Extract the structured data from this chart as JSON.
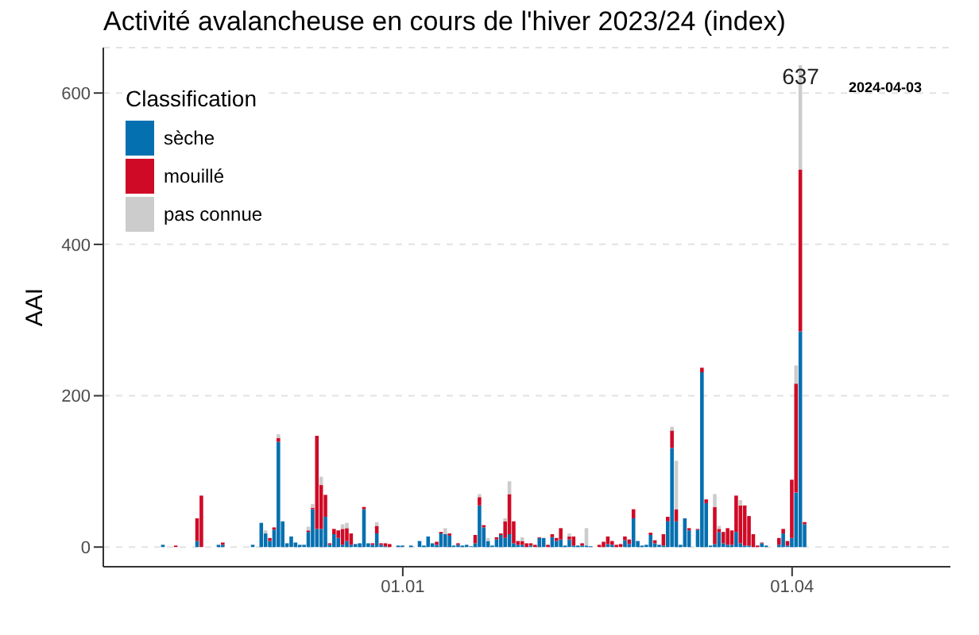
{
  "chart_data": {
    "type": "bar",
    "title": "Activité avalancheuse en cours de l'hiver 2023/24 (index)",
    "ylabel": "AAI",
    "legend_title": "Classification",
    "legend": "top left",
    "grid": "y",
    "stacked": true,
    "xlim": [
      "2023-10-23",
      "2024-05-08"
    ],
    "xticks": [
      {
        "value": "2024-01-01",
        "label": "01.01"
      },
      {
        "value": "2024-04-01",
        "label": "01.04"
      }
    ],
    "ylim": [
      -26,
      660
    ],
    "yticks": [
      0,
      200,
      400,
      600
    ],
    "annotations": [
      {
        "text": "637",
        "x": "2024-04-03",
        "y": 637
      },
      "2024-04-03"
    ],
    "x": [
      "2023-11-06",
      "2023-11-09",
      "2023-11-14",
      "2023-11-15",
      "2023-11-19",
      "2023-11-20",
      "2023-11-27",
      "2023-11-29",
      "2023-11-30",
      "2023-12-01",
      "2023-12-02",
      "2023-12-03",
      "2023-12-04",
      "2023-12-05",
      "2023-12-06",
      "2023-12-07",
      "2023-12-08",
      "2023-12-09",
      "2023-12-10",
      "2023-12-11",
      "2023-12-12",
      "2023-12-13",
      "2023-12-14",
      "2023-12-15",
      "2023-12-16",
      "2023-12-17",
      "2023-12-18",
      "2023-12-19",
      "2023-12-20",
      "2023-12-21",
      "2023-12-22",
      "2023-12-23",
      "2023-12-24",
      "2023-12-25",
      "2023-12-26",
      "2023-12-27",
      "2023-12-28",
      "2023-12-29",
      "2023-12-31",
      "2024-01-01",
      "2024-01-03",
      "2024-01-05",
      "2024-01-06",
      "2024-01-07",
      "2024-01-08",
      "2024-01-09",
      "2024-01-10",
      "2024-01-11",
      "2024-01-12",
      "2024-01-13",
      "2024-01-14",
      "2024-01-15",
      "2024-01-16",
      "2024-01-17",
      "2024-01-18",
      "2024-01-19",
      "2024-01-20",
      "2024-01-21",
      "2024-01-22",
      "2024-01-23",
      "2024-01-24",
      "2024-01-25",
      "2024-01-26",
      "2024-01-27",
      "2024-01-28",
      "2024-01-29",
      "2024-01-30",
      "2024-01-31",
      "2024-02-01",
      "2024-02-02",
      "2024-02-03",
      "2024-02-04",
      "2024-02-05",
      "2024-02-06",
      "2024-02-07",
      "2024-02-08",
      "2024-02-09",
      "2024-02-10",
      "2024-02-11",
      "2024-02-12",
      "2024-02-13",
      "2024-02-14",
      "2024-02-16",
      "2024-02-17",
      "2024-02-18",
      "2024-02-19",
      "2024-02-20",
      "2024-02-21",
      "2024-02-22",
      "2024-02-23",
      "2024-02-24",
      "2024-02-25",
      "2024-02-26",
      "2024-02-27",
      "2024-02-28",
      "2024-02-29",
      "2024-03-01",
      "2024-03-02",
      "2024-03-03",
      "2024-03-04",
      "2024-03-05",
      "2024-03-06",
      "2024-03-07",
      "2024-03-08",
      "2024-03-10",
      "2024-03-11",
      "2024-03-12",
      "2024-03-13",
      "2024-03-14",
      "2024-03-15",
      "2024-03-16",
      "2024-03-17",
      "2024-03-18",
      "2024-03-19",
      "2024-03-20",
      "2024-03-21",
      "2024-03-22",
      "2024-03-23",
      "2024-03-24",
      "2024-03-25",
      "2024-03-26",
      "2024-03-29",
      "2024-03-30",
      "2024-03-31",
      "2024-04-01",
      "2024-04-02",
      "2024-04-03",
      "2024-04-04"
    ],
    "series": [
      {
        "name": "sèche",
        "color": "#0570b0",
        "values": [
          3,
          null,
          8,
          null,
          3,
          3,
          3,
          32,
          18,
          8,
          23,
          139,
          34,
          5,
          14,
          6,
          3,
          3,
          20,
          50,
          24,
          24,
          40,
          3,
          17,
          12,
          3,
          8,
          3,
          4,
          5,
          50,
          5,
          3,
          18,
          3,
          1,
          null,
          2,
          2,
          2,
          8,
          2,
          14,
          5,
          3,
          18,
          17,
          15,
          2,
          3,
          2,
          3,
          1,
          5,
          55,
          26,
          8,
          2,
          10,
          16,
          12,
          17,
          5,
          3,
          3,
          null,
          2,
          null,
          12,
          12,
          null,
          13,
          8,
          10,
          2,
          10,
          2,
          2,
          2,
          2,
          1,
          null,
          null,
          4,
          3,
          null,
          null,
          9,
          4,
          38,
          8,
          2,
          3,
          16,
          5,
          3,
          2,
          34,
          131,
          34,
          3,
          38,
          22,
          23,
          231,
          58,
          2,
          4,
          20,
          5,
          3,
          3,
          20,
          5,
          2,
          2,
          null,
          null,
          5,
          2,
          3,
          18,
          2,
          12,
          72,
          285,
          30
        ]
      },
      {
        "name": "mouillé",
        "color": "#cf0a26",
        "values": [
          null,
          2,
          30,
          68,
          null,
          3,
          null,
          null,
          null,
          4,
          3,
          5,
          null,
          null,
          null,
          null,
          null,
          null,
          2,
          2,
          123,
          58,
          29,
          2,
          7,
          10,
          21,
          17,
          15,
          null,
          null,
          3,
          null,
          2,
          10,
          2,
          4,
          4,
          null,
          null,
          null,
          null,
          null,
          null,
          null,
          4,
          2,
          null,
          3,
          null,
          2,
          null,
          null,
          null,
          11,
          11,
          3,
          null,
          null,
          3,
          2,
          22,
          53,
          29,
          5,
          5,
          5,
          3,
          3,
          1,
          null,
          3,
          4,
          4,
          15,
          null,
          4,
          12,
          null,
          3,
          null,
          null,
          3,
          7,
          10,
          5,
          3,
          4,
          5,
          6,
          12,
          null,
          null,
          null,
          3,
          4,
          null,
          15,
          6,
          23,
          16,
          null,
          null,
          3,
          1,
          6,
          5,
          null,
          49,
          4,
          15,
          22,
          19,
          48,
          50,
          53,
          39,
          17,
          2,
          1,
          null,
          9,
          6,
          6,
          77,
          144,
          214,
          3
        ]
      },
      {
        "name": "pas connue",
        "color": "#cccccc",
        "values": [
          null,
          null,
          null,
          null,
          null,
          null,
          null,
          null,
          4,
          null,
          null,
          5,
          null,
          null,
          null,
          null,
          null,
          null,
          5,
          5,
          null,
          11,
          null,
          null,
          null,
          null,
          6,
          7,
          null,
          null,
          null,
          null,
          null,
          null,
          5,
          null,
          null,
          null,
          null,
          null,
          null,
          null,
          null,
          null,
          null,
          null,
          null,
          8,
          null,
          null,
          null,
          null,
          null,
          null,
          null,
          4,
          null,
          4,
          null,
          null,
          null,
          4,
          17,
          null,
          null,
          5,
          null,
          null,
          null,
          null,
          null,
          null,
          null,
          null,
          null,
          null,
          4,
          null,
          null,
          null,
          23,
          null,
          null,
          null,
          null,
          null,
          null,
          null,
          null,
          null,
          null,
          null,
          null,
          null,
          null,
          null,
          null,
          null,
          null,
          5,
          64,
          null,
          null,
          null,
          null,
          null,
          null,
          null,
          17,
          4,
          null,
          null,
          null,
          null,
          7,
          null,
          null,
          null,
          null,
          null,
          null,
          null,
          null,
          null,
          null,
          24,
          138,
          null
        ]
      }
    ]
  }
}
